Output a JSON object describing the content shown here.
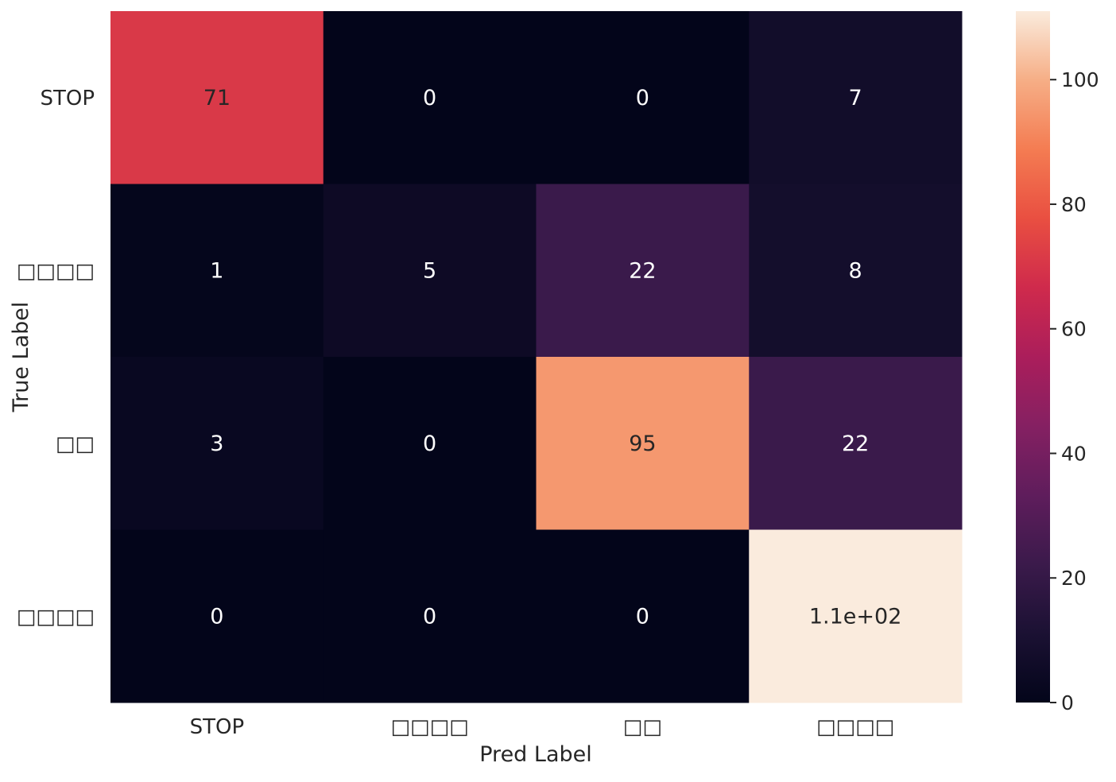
{
  "chart_data": {
    "type": "heatmap",
    "title": "",
    "xlabel": "Pred Label",
    "ylabel": "True Label",
    "x_categories": [
      "STOP",
      "□□□□",
      "□□",
      "□□□□"
    ],
    "y_categories": [
      "STOP",
      "□□□□",
      "□□",
      "□□□□"
    ],
    "values": [
      [
        71,
        0,
        0,
        7
      ],
      [
        1,
        5,
        22,
        8
      ],
      [
        3,
        0,
        95,
        22
      ],
      [
        0,
        0,
        0,
        111
      ]
    ],
    "annotations": [
      [
        "71",
        "0",
        "0",
        "7"
      ],
      [
        "1",
        "5",
        "22",
        "8"
      ],
      [
        "3",
        "0",
        "95",
        "22"
      ],
      [
        "0",
        "0",
        "0",
        "1.1e+02"
      ]
    ],
    "colorbar": {
      "colormap": "rocket",
      "range": [
        0,
        111
      ],
      "ticks": [
        0,
        20,
        40,
        60,
        80,
        100
      ],
      "tick_labels": [
        "0",
        "20",
        "40",
        "60",
        "80",
        "100"
      ]
    },
    "grid": false,
    "legend": "none"
  }
}
